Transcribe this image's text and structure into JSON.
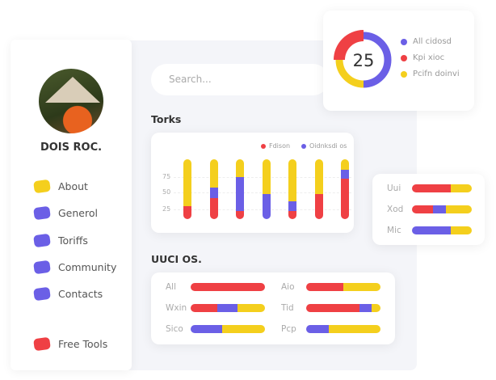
{
  "colors": {
    "red": "#ef4044",
    "blue": "#6b5fe6",
    "yellow": "#f4cf1d"
  },
  "profile": {
    "name": "DOIS ROC."
  },
  "sidebar": {
    "items": [
      {
        "label": "About",
        "color": "#f4cf1d"
      },
      {
        "label": "Generol",
        "color": "#6b5fe6"
      },
      {
        "label": "Toriffs",
        "color": "#6b5fe6"
      },
      {
        "label": "Community",
        "color": "#6b5fe6"
      },
      {
        "label": "Contacts",
        "color": "#6b5fe6"
      },
      {
        "label": "Free Tools",
        "color": "#ef4044"
      }
    ]
  },
  "search": {
    "placeholder": "Search..."
  },
  "chart_data": [
    {
      "type": "bar",
      "title": "Torks",
      "stacked": true,
      "yticks": [
        "25",
        "50",
        "75"
      ],
      "ylim": [
        0,
        100
      ],
      "series": [
        {
          "name": "Fdison",
          "color": "#ef4044",
          "values": [
            22,
            35,
            14,
            0,
            14,
            42,
            68
          ]
        },
        {
          "name": "Oidnksdi os",
          "color": "#6b5fe6",
          "values": [
            0,
            18,
            56,
            42,
            16,
            0,
            14
          ]
        },
        {
          "color": "#f4cf1d",
          "values": [
            78,
            47,
            30,
            58,
            70,
            58,
            18
          ]
        }
      ],
      "legend": "top-right",
      "grid": true
    },
    {
      "type": "pie",
      "center_label": "25",
      "slices": [
        {
          "name": "All cidosd",
          "value": 50,
          "color": "#6b5fe6"
        },
        {
          "name": "Pcifn doinvi",
          "value": 25,
          "color": "#f4cf1d"
        },
        {
          "name": "Kpi xioc",
          "value": 25,
          "color": "#ef4044"
        }
      ],
      "legend_order": [
        "All cidosd",
        "Kpi xioc",
        "Pcifn doinvi"
      ]
    },
    {
      "type": "bar",
      "orientation": "horizontal",
      "stacked": true,
      "rows": [
        {
          "label": "Uui",
          "red": 65,
          "blue": 0,
          "yellow": 35
        },
        {
          "label": "Xod",
          "red": 35,
          "blue": 22,
          "yellow": 43
        },
        {
          "label": "Mic",
          "red": 0,
          "blue": 65,
          "yellow": 35
        }
      ]
    },
    {
      "type": "bar",
      "orientation": "horizontal",
      "stacked": true,
      "title": "UUCI OS.",
      "rows": [
        {
          "label": "All",
          "red": 100,
          "blue": 0,
          "yellow": 0
        },
        {
          "label": "Aio",
          "red": 50,
          "blue": 0,
          "yellow": 50
        },
        {
          "label": "Wxin",
          "red": 36,
          "blue": 27,
          "yellow": 37
        },
        {
          "label": "Tid",
          "red": 72,
          "blue": 16,
          "yellow": 12
        },
        {
          "label": "Sico",
          "red": 0,
          "blue": 42,
          "yellow": 58
        },
        {
          "label": "Pcp",
          "red": 0,
          "blue": 30,
          "yellow": 70
        }
      ]
    }
  ]
}
